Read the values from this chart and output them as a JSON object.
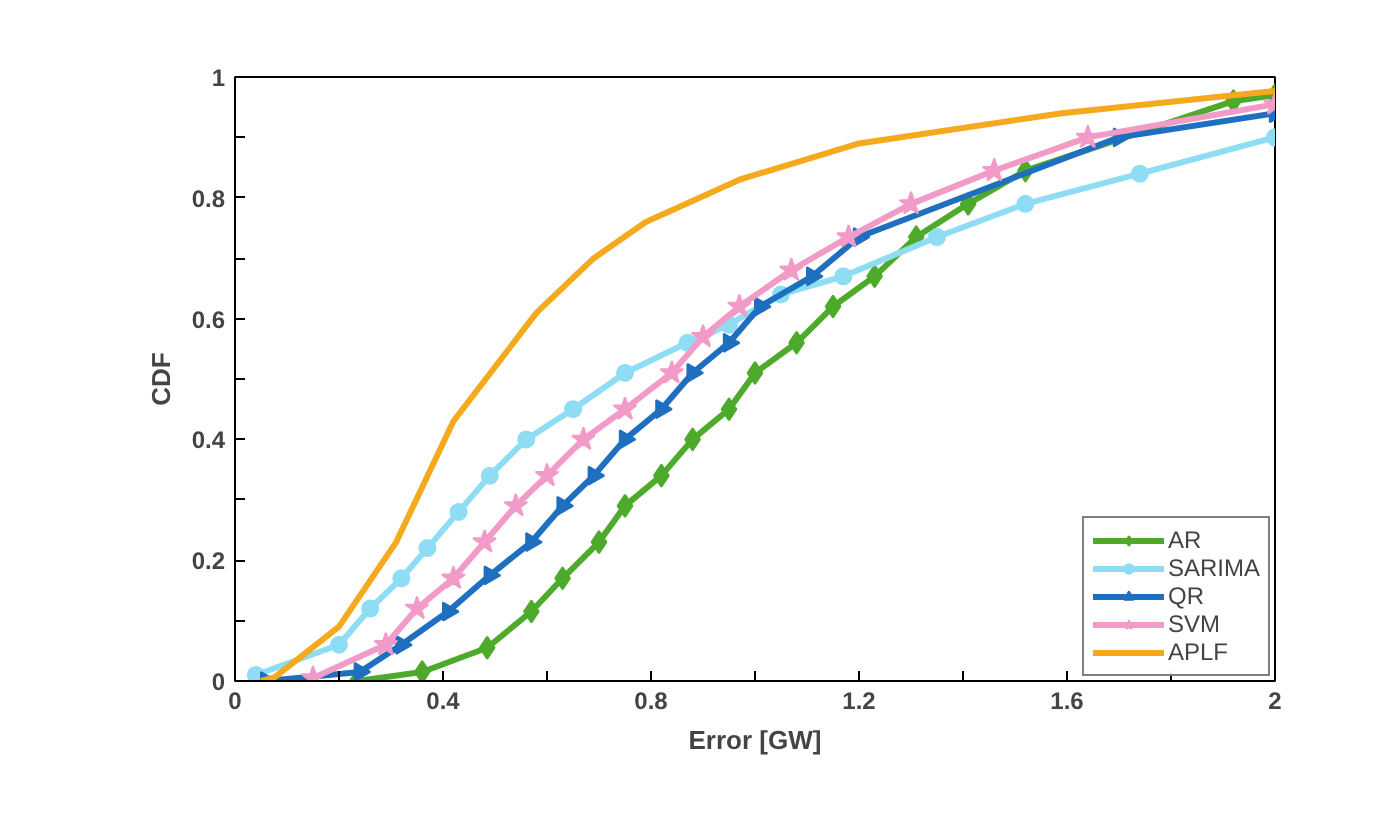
{
  "chart_data": {
    "type": "line",
    "xlabel": "Error [GW]",
    "ylabel": "CDF",
    "xlim": [
      0,
      2
    ],
    "ylim": [
      0,
      1
    ],
    "xticks": [
      0,
      {
        "value": 0.2,
        "label": null
      },
      0.4,
      {
        "value": 0.6,
        "label": null
      },
      0.8,
      {
        "value": 1.0,
        "label": null
      },
      1.2,
      {
        "value": 1.4,
        "label": null
      },
      1.6,
      {
        "value": 1.8,
        "label": null
      },
      2
    ],
    "yticks": [
      0,
      {
        "value": 0.1,
        "label": null
      },
      0.2,
      {
        "value": 0.3,
        "label": null
      },
      0.4,
      {
        "value": 0.5,
        "label": null
      },
      0.6,
      {
        "value": 0.7,
        "label": null
      },
      0.8,
      {
        "value": 0.9,
        "label": null
      },
      1
    ],
    "grid": false,
    "legend": "bottom right",
    "line_style": "solid",
    "series": [
      {
        "name": "AR",
        "color": "#4daa2a",
        "marker": "diamond",
        "x": [
          0.235,
          0.36,
          0.485,
          0.57,
          0.63,
          0.7,
          0.75,
          0.82,
          0.88,
          0.95,
          1.0,
          1.08,
          1.15,
          1.23,
          1.31,
          1.41,
          1.52,
          1.92,
          2
        ],
        "values": [
          0,
          0.015,
          0.055,
          0.115,
          0.17,
          0.23,
          0.29,
          0.34,
          0.4,
          0.45,
          0.51,
          0.56,
          0.62,
          0.67,
          0.735,
          0.79,
          0.845,
          0.96,
          0.97
        ]
      },
      {
        "name": "SARIMA",
        "color": "#8fdcf5",
        "marker": "circle",
        "x": [
          0.04,
          0.2,
          0.26,
          0.32,
          0.37,
          0.43,
          0.49,
          0.56,
          0.65,
          0.75,
          0.87,
          0.95,
          1.05,
          1.17,
          1.35,
          1.52,
          1.74,
          2
        ],
        "values": [
          0.01,
          0.06,
          0.12,
          0.17,
          0.22,
          0.28,
          0.34,
          0.4,
          0.45,
          0.51,
          0.56,
          0.59,
          0.64,
          0.67,
          0.735,
          0.79,
          0.84,
          0.9
        ]
      },
      {
        "name": "QR",
        "color": "#1f6fc0",
        "marker": "triangle",
        "x": [
          0.06,
          0.24,
          0.32,
          0.41,
          0.49,
          0.57,
          0.63,
          0.69,
          0.75,
          0.82,
          0.88,
          0.95,
          1.01,
          1.11,
          1.2,
          1.7,
          2
        ],
        "values": [
          0,
          0.015,
          0.06,
          0.115,
          0.175,
          0.23,
          0.29,
          0.34,
          0.4,
          0.45,
          0.51,
          0.56,
          0.62,
          0.67,
          0.735,
          0.9,
          0.94
        ]
      },
      {
        "name": "SVM",
        "color": "#f29ac8",
        "marker": "star",
        "x": [
          0.15,
          0.29,
          0.35,
          0.42,
          0.48,
          0.54,
          0.6,
          0.67,
          0.75,
          0.84,
          0.9,
          0.97,
          1.07,
          1.18,
          1.3,
          1.46,
          1.64,
          2
        ],
        "values": [
          0.005,
          0.06,
          0.12,
          0.17,
          0.23,
          0.29,
          0.34,
          0.4,
          0.45,
          0.51,
          0.57,
          0.62,
          0.68,
          0.735,
          0.79,
          0.845,
          0.9,
          0.955
        ]
      },
      {
        "name": "APLF",
        "color": "#f4aa1c",
        "marker": "none",
        "x": [
          0.05,
          0.076,
          0.2,
          0.31,
          0.42,
          0.58,
          0.69,
          0.79,
          0.97,
          1.2,
          1.59,
          2
        ],
        "values": [
          0,
          0.006,
          0.09,
          0.23,
          0.43,
          0.61,
          0.7,
          0.76,
          0.83,
          0.89,
          0.94,
          0.977
        ]
      }
    ]
  }
}
